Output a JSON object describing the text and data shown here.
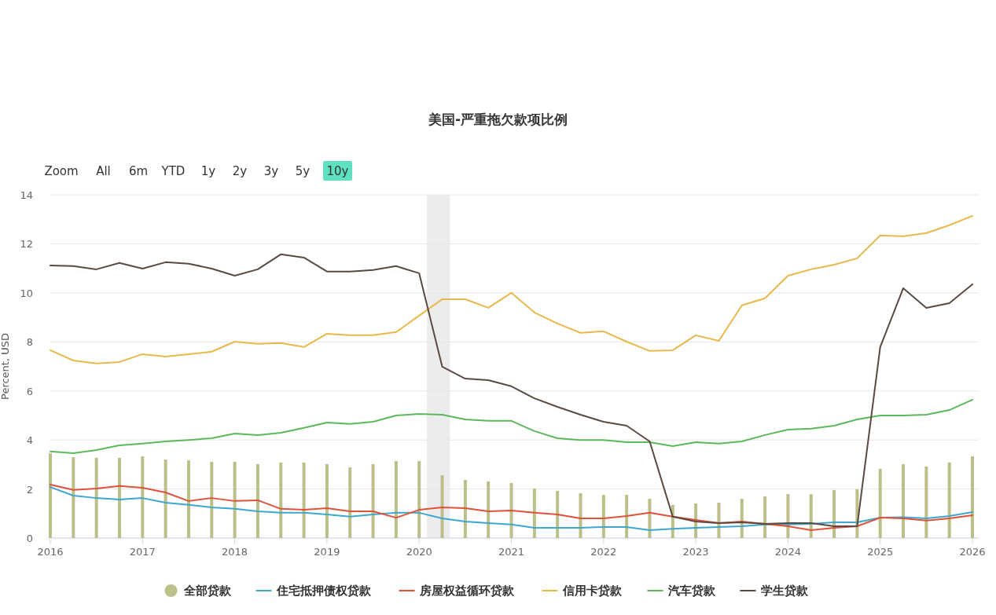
{
  "chart_data": {
    "type": "line",
    "title": "美国-严重拖欠款项比例",
    "ylabel": "Percent, USD",
    "annotations": [
      "Zoom",
      "All",
      "6m",
      "YTD",
      "1y",
      "2y",
      "3y",
      "5y",
      "10y"
    ],
    "x": [
      "2016-01",
      "2016-04",
      "2016-07",
      "2016-10",
      "2017-01",
      "2017-04",
      "2017-07",
      "2017-10",
      "2018-01",
      "2018-04",
      "2018-07",
      "2018-10",
      "2019-01",
      "2019-04",
      "2019-07",
      "2019-10",
      "2020-01",
      "2020-04",
      "2020-07",
      "2020-10",
      "2021-01",
      "2021-04",
      "2021-07",
      "2021-10",
      "2022-01",
      "2022-04",
      "2022-07",
      "2022-10",
      "2023-01",
      "2023-04",
      "2023-07",
      "2023-10",
      "2024-01",
      "2024-04",
      "2024-07",
      "2024-10",
      "2025-01",
      "2025-04",
      "2025-07",
      "2025-10",
      "2026-01"
    ],
    "series": [
      {
        "name": "全部贷款",
        "type": "bar",
        "color": "#bcbf87",
        "values": [
          3.46,
          3.3,
          3.27,
          3.27,
          3.33,
          3.2,
          3.17,
          3.11,
          3.11,
          3.01,
          3.08,
          3.08,
          3.01,
          2.88,
          3.01,
          3.14,
          3.14,
          2.56,
          2.37,
          2.31,
          2.24,
          2.02,
          1.92,
          1.83,
          1.76,
          1.76,
          1.6,
          1.35,
          1.41,
          1.44,
          1.6,
          1.7,
          1.79,
          1.79,
          1.96,
          1.99,
          2.82,
          3.01,
          2.92,
          3.08,
          3.33
        ]
      },
      {
        "name": "住宅抵押债权贷款",
        "color": "#3ea6cf",
        "values": [
          2.08,
          1.73,
          1.63,
          1.57,
          1.63,
          1.44,
          1.35,
          1.25,
          1.19,
          1.09,
          1.03,
          1.03,
          0.96,
          0.87,
          0.96,
          1.03,
          1.03,
          0.8,
          0.67,
          0.61,
          0.55,
          0.42,
          0.42,
          0.42,
          0.45,
          0.45,
          0.32,
          0.38,
          0.42,
          0.45,
          0.48,
          0.55,
          0.55,
          0.58,
          0.64,
          0.64,
          0.83,
          0.85,
          0.8,
          0.9,
          1.06
        ]
      },
      {
        "name": "房屋权益循环贷款",
        "color": "#e0513a",
        "values": [
          2.18,
          1.96,
          2.02,
          2.12,
          2.05,
          1.86,
          1.51,
          1.63,
          1.51,
          1.54,
          1.19,
          1.15,
          1.22,
          1.09,
          1.09,
          0.83,
          1.15,
          1.25,
          1.22,
          1.09,
          1.12,
          1.03,
          0.96,
          0.8,
          0.8,
          0.9,
          1.03,
          0.87,
          0.74,
          0.61,
          0.67,
          0.58,
          0.48,
          0.32,
          0.42,
          0.48,
          0.83,
          0.8,
          0.71,
          0.8,
          0.93
        ]
      },
      {
        "name": "信用卡贷款",
        "color": "#e8b84a",
        "values": [
          7.66,
          7.24,
          7.12,
          7.18,
          7.5,
          7.4,
          7.5,
          7.6,
          8.01,
          7.92,
          7.95,
          7.79,
          8.33,
          8.27,
          8.27,
          8.4,
          9.07,
          9.74,
          9.74,
          9.39,
          10.0,
          9.2,
          8.75,
          8.37,
          8.43,
          8.01,
          7.63,
          7.66,
          8.27,
          8.04,
          9.49,
          9.78,
          10.7,
          10.96,
          11.15,
          11.41,
          12.34,
          12.31,
          12.44,
          12.76,
          13.14
        ]
      },
      {
        "name": "汽车贷款",
        "color": "#5cb85c",
        "values": [
          3.53,
          3.46,
          3.59,
          3.78,
          3.85,
          3.94,
          4.0,
          4.07,
          4.26,
          4.2,
          4.29,
          4.49,
          4.71,
          4.65,
          4.74,
          5.0,
          5.06,
          5.03,
          4.84,
          4.78,
          4.78,
          4.36,
          4.07,
          4.0,
          4.0,
          3.91,
          3.91,
          3.75,
          3.91,
          3.85,
          3.94,
          4.2,
          4.42,
          4.46,
          4.58,
          4.84,
          5.0,
          5.0,
          5.03,
          5.22,
          5.64
        ]
      },
      {
        "name": "学生贷款",
        "color": "#5a4a42",
        "values": [
          11.12,
          11.09,
          10.96,
          11.22,
          10.99,
          11.25,
          11.19,
          10.99,
          10.7,
          10.96,
          11.57,
          11.44,
          10.87,
          10.87,
          10.93,
          11.09,
          10.8,
          6.99,
          6.5,
          6.44,
          6.19,
          5.7,
          5.35,
          5.03,
          4.74,
          4.58,
          3.94,
          0.87,
          0.67,
          0.61,
          0.64,
          0.58,
          0.61,
          0.61,
          0.48,
          0.48,
          7.79,
          10.19,
          9.39,
          9.58,
          10.35
        ]
      }
    ],
    "xlim": [
      "2016-01",
      "2026-01"
    ],
    "xticks": [
      {
        "value": "2016-01",
        "label": "2016"
      },
      {
        "value": "2017-01",
        "label": "2017"
      },
      {
        "value": "2018-01",
        "label": "2018"
      },
      {
        "value": "2019-01",
        "label": "2019"
      },
      {
        "value": "2020-01",
        "label": "2020"
      },
      {
        "value": "2021-01",
        "label": "2021"
      },
      {
        "value": "2022-01",
        "label": "2022"
      },
      {
        "value": "2023-01",
        "label": "2023"
      },
      {
        "value": "2024-01",
        "label": "2024"
      },
      {
        "value": "2025-01",
        "label": "2025"
      },
      {
        "value": "2026-01",
        "label": "2026"
      }
    ],
    "ylim": [
      0,
      14
    ],
    "yticks": [
      0,
      2,
      4,
      6,
      8,
      10,
      12,
      14
    ],
    "bands": [
      {
        "axis": "x",
        "from": "2020-02",
        "to": "2020-05",
        "color": "#ececec"
      }
    ],
    "grid": "y",
    "legend": "bottom",
    "marker": "none",
    "line_style": "solid"
  }
}
